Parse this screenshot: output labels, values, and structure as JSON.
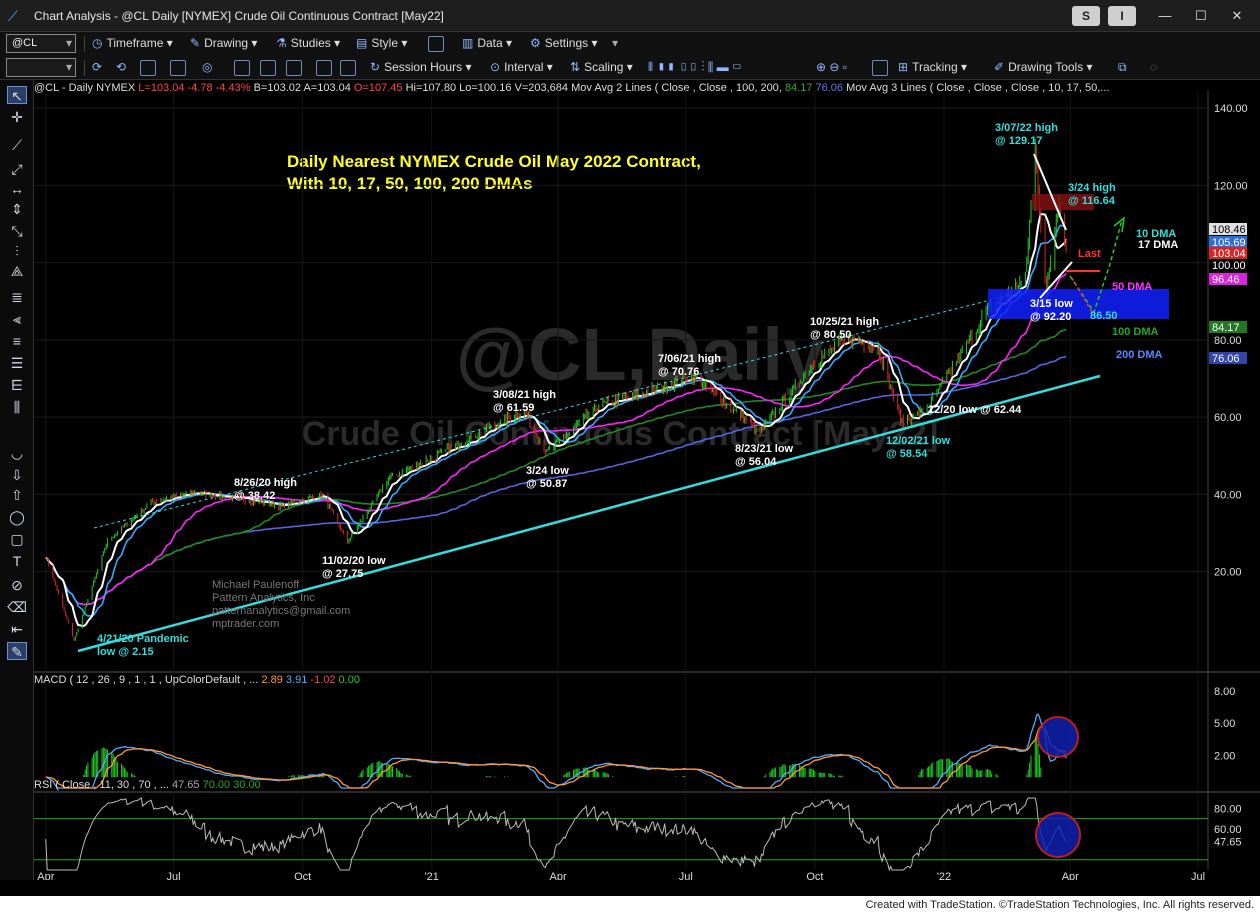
{
  "window": {
    "title": "Chart Analysis - @CL Daily [NYMEX] Crude Oil Continuous Contract [May22]",
    "btn_s": "S",
    "btn_i": "I"
  },
  "toolbar1": {
    "symbol": "@CL",
    "timeframe": "Timeframe",
    "drawing": "Drawing",
    "studies": "Studies",
    "style": "Style",
    "data": "Data",
    "settings": "Settings"
  },
  "toolbar2": {
    "session_hours": "Session Hours",
    "interval": "Interval",
    "scaling": "Scaling",
    "tracking": "Tracking",
    "drawing_tools": "Drawing Tools"
  },
  "infoline": {
    "symbol": "@CL - Daily  NYMEX",
    "last": "L=103.04",
    "chg": "-4.78",
    "pct": "-4.43%",
    "bid": "B=103.02",
    "ask": "A=103.04",
    "open": "O=107.45",
    "high": "Hi=107.80",
    "low": "Lo=100.16",
    "vol": "V=203,684",
    "ma2": "Mov Avg 2 Lines (      Close ,          Close ,  100,  200,",
    "ma2_v1": "84.17",
    "ma2_v2": "76.06",
    "ma3": "Mov Avg 3 Lines (  Close ,   Close ,   Close ,  10,  17,  50,..."
  },
  "macd_label": {
    "params": "MACD ( 12 , 26 , 9 , 1 , 1 , UpColorDefault , ...",
    "v1": "2.89",
    "v2": "3.91",
    "v3": "-1.02",
    "v4": "0.00"
  },
  "rsi_label": {
    "params": "RSI (  Close , 11,  30 , 70 , ...",
    "v1": "47.65",
    "v2": "70.00",
    "v3": "30.00"
  },
  "colors": {
    "up_bar": "#22cc22",
    "down_bar": "#dd2222",
    "dma10": "#ffffff",
    "dma17": "#33aaff",
    "dma50": "#ff22ff",
    "dma100": "#228822",
    "dma200": "#5566dd",
    "trend": "#33dddd",
    "annotation": "#ffff22"
  },
  "chart_data": {
    "type": "line",
    "watermark_symbol": "@CL,Daily",
    "watermark_name": "Crude Oil Continuous Contract [May22]",
    "title": "Daily Nearest NYMEX Crude Oil May 2022 Contract,",
    "subtitle": "With 10, 17, 50, 100, 200 DMAs",
    "x_ticks": [
      "Apr",
      "Jul",
      "Oct",
      "'21",
      "Apr",
      "Jul",
      "Oct",
      "'22",
      "Apr",
      "Jul"
    ],
    "y_ticks": [
      "140.00",
      "120.00",
      "100.00",
      "80.00",
      "60.00",
      "40.00",
      "20.00"
    ],
    "ylim": [
      0,
      145
    ],
    "price_series": {
      "name": "@CL Daily",
      "points": [
        [
          "2020-04-01",
          24
        ],
        [
          "2020-04-21",
          2.15
        ],
        [
          "2020-05-15",
          28
        ],
        [
          "2020-06-15",
          38
        ],
        [
          "2020-07-15",
          40.5
        ],
        [
          "2020-08-26",
          38.42
        ],
        [
          "2020-09-15",
          37
        ],
        [
          "2020-10-15",
          40
        ],
        [
          "2020-11-02",
          27.75
        ],
        [
          "2020-12-01",
          44
        ],
        [
          "2021-01-15",
          52
        ],
        [
          "2021-02-15",
          58
        ],
        [
          "2021-03-08",
          61.59
        ],
        [
          "2021-03-24",
          50.87
        ],
        [
          "2021-04-30",
          63
        ],
        [
          "2021-05-31",
          66
        ],
        [
          "2021-07-06",
          70.76
        ],
        [
          "2021-08-23",
          56.04
        ],
        [
          "2021-09-30",
          74
        ],
        [
          "2021-10-25",
          80.5
        ],
        [
          "2021-11-15",
          78
        ],
        [
          "2021-12-02",
          58.54
        ],
        [
          "2021-12-20",
          62.44
        ],
        [
          "2022-01-31",
          87
        ],
        [
          "2022-02-28",
          96
        ],
        [
          "2022-03-07",
          129.17
        ],
        [
          "2022-03-15",
          92.2
        ],
        [
          "2022-03-24",
          116.64
        ],
        [
          "2022-03-29",
          103.04
        ]
      ]
    },
    "moving_averages": [
      {
        "name": "10 DMA",
        "last": "108.46"
      },
      {
        "name": "17 DMA",
        "last": "105.69"
      },
      {
        "name": "50 DMA",
        "last": "96.46"
      },
      {
        "name": "100 DMA",
        "last": "84.17"
      },
      {
        "name": "200 DMA",
        "last": "76.06"
      }
    ],
    "price_labels": [
      "108.46",
      "105.69",
      "103.04",
      "100.00",
      "96.46",
      "84.17",
      "76.06"
    ],
    "annotations": [
      {
        "l1": "3/07/22 high",
        "l2": "@ 129.17"
      },
      {
        "l1": "3/24 high",
        "l2": "@ 116.64"
      },
      {
        "l1": "10 DMA",
        "l2": ""
      },
      {
        "l1": "17 DMA",
        "l2": ""
      },
      {
        "l1": "Last",
        "l2": ""
      },
      {
        "l1": "50 DMA",
        "l2": ""
      },
      {
        "l1": "3/15 low",
        "l2": "@ 92.20"
      },
      {
        "l1": "86.50",
        "l2": ""
      },
      {
        "l1": "100 DMA",
        "l2": ""
      },
      {
        "l1": "200 DMA",
        "l2": ""
      },
      {
        "l1": "10/25/21 high",
        "l2": "@ 80.50"
      },
      {
        "l1": "7/06/21 high",
        "l2": "@ 70.76"
      },
      {
        "l1": "3/08/21 high",
        "l2": "@ 61.59"
      },
      {
        "l1": "3/24 low",
        "l2": "@ 50.87"
      },
      {
        "l1": "8/23/21 low",
        "l2": "@ 56.04"
      },
      {
        "l1": "12/20 low @ 62.44",
        "l2": ""
      },
      {
        "l1": "12/02/21 low",
        "l2": "@ 58.54"
      },
      {
        "l1": "8/26/20 high",
        "l2": "@ 38.42"
      },
      {
        "l1": "11/02/20 low",
        "l2": "@ 27.75"
      },
      {
        "l1": "4/21/20 Pandemic",
        "l2": "low @ 2.15"
      }
    ],
    "signature": [
      "Michael Paulenoff",
      "Pattern Analytics, Inc",
      "patternanalytics@gmail.com",
      "mptrader.com"
    ],
    "macd": {
      "y_ticks": [
        "8.00",
        "5.00",
        "2.00"
      ],
      "ylim": [
        -1,
        9
      ]
    },
    "rsi": {
      "y_ticks": [
        "80.00",
        "60.00",
        "47.65"
      ],
      "ylim": [
        20,
        90
      ]
    }
  },
  "footer": "Created with TradeStation. ©TradeStation Technologies, Inc. All rights reserved."
}
